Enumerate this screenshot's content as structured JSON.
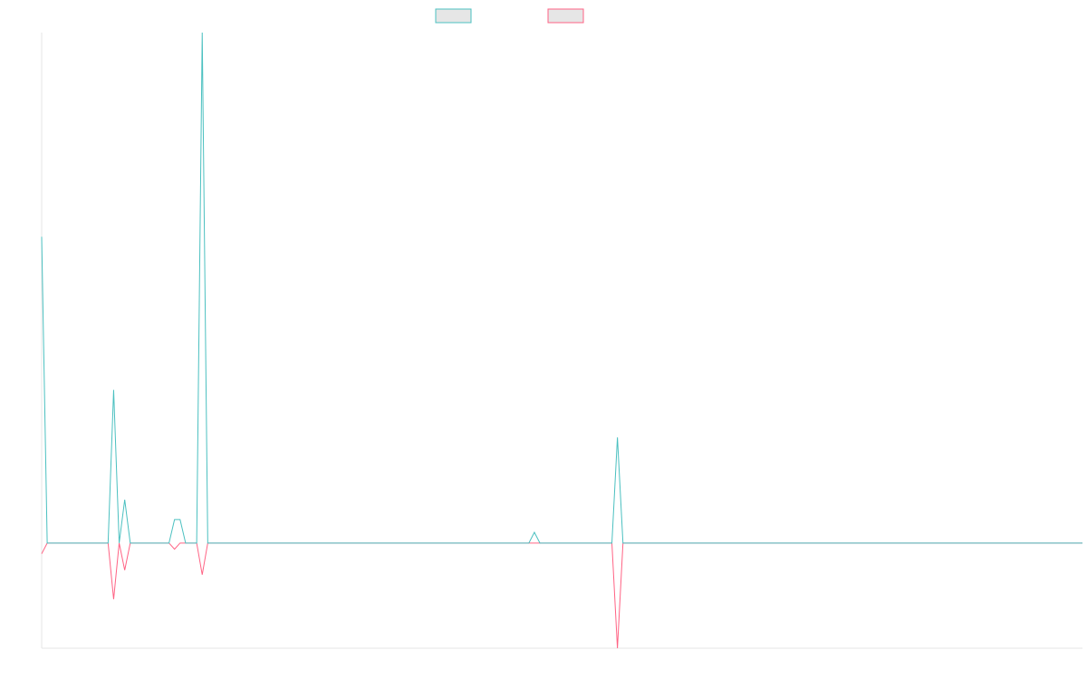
{
  "chart_data": {
    "type": "line",
    "ylim": [
      -2.06,
      10
    ],
    "series": [
      {
        "color": "#4bc0c0",
        "values": [
          6,
          0,
          0,
          0,
          0,
          0,
          0,
          0,
          0,
          0,
          0,
          0,
          0,
          3,
          0,
          0.85,
          0,
          0,
          0,
          0,
          0,
          0,
          0,
          0,
          0.46,
          0.46,
          0,
          0,
          0,
          10,
          0,
          0,
          0,
          0,
          0,
          0,
          0,
          0,
          0,
          0,
          0,
          0,
          0,
          0,
          0,
          0,
          0,
          0,
          0,
          0,
          0,
          0,
          0,
          0,
          0,
          0,
          0,
          0,
          0,
          0,
          0,
          0,
          0,
          0,
          0,
          0,
          0,
          0,
          0,
          0,
          0,
          0,
          0,
          0,
          0,
          0,
          0,
          0,
          0,
          0,
          0,
          0,
          0,
          0,
          0,
          0,
          0,
          0,
          0,
          0.21,
          0,
          0,
          0,
          0,
          0,
          0,
          0,
          0,
          0,
          0,
          0,
          0,
          0,
          0,
          2.07,
          0,
          0,
          0,
          0,
          0,
          0,
          0,
          0,
          0,
          0,
          0,
          0,
          0,
          0,
          0,
          0,
          0,
          0,
          0,
          0,
          0,
          0,
          0,
          0,
          0,
          0,
          0,
          0,
          0,
          0,
          0,
          0,
          0,
          0,
          0,
          0,
          0,
          0,
          0,
          0,
          0,
          0,
          0,
          0,
          0,
          0,
          0,
          0,
          0,
          0,
          0,
          0,
          0,
          0,
          0,
          0,
          0,
          0,
          0,
          0,
          0,
          0,
          0,
          0,
          0,
          0,
          0,
          0,
          0,
          0,
          0,
          0,
          0,
          0,
          0,
          0,
          0,
          0,
          0,
          0,
          0,
          0,
          0,
          0
        ]
      },
      {
        "color": "#ff6384",
        "values": [
          -0.21,
          0,
          0,
          0,
          0,
          0,
          0,
          0,
          0,
          0,
          0,
          0,
          0,
          -1.1,
          0,
          -0.53,
          0,
          0,
          0,
          0,
          0,
          0,
          0,
          0,
          -0.12,
          0,
          0,
          0,
          0,
          -0.62,
          0,
          0,
          0,
          0,
          0,
          0,
          0,
          0,
          0,
          0,
          0,
          0,
          0,
          0,
          0,
          0,
          0,
          0,
          0,
          0,
          0,
          0,
          0,
          0,
          0,
          0,
          0,
          0,
          0,
          0,
          0,
          0,
          0,
          0,
          0,
          0,
          0,
          0,
          0,
          0,
          0,
          0,
          0,
          0,
          0,
          0,
          0,
          0,
          0,
          0,
          0,
          0,
          0,
          0,
          0,
          0,
          0,
          0,
          0,
          0,
          0,
          0,
          0,
          0,
          0,
          0,
          0,
          0,
          0,
          0,
          0,
          0,
          0,
          0,
          -2.06,
          0,
          0,
          0,
          0,
          0,
          0,
          0,
          0,
          0,
          0,
          0,
          0,
          0,
          0,
          0,
          0,
          0,
          0,
          0,
          0,
          0,
          0,
          0,
          0,
          0,
          0,
          0,
          0,
          0,
          0,
          0,
          0,
          0,
          0,
          0,
          0,
          0,
          0,
          0,
          0,
          0,
          0,
          0,
          0,
          0,
          0,
          0,
          0,
          0,
          0,
          0,
          0,
          0,
          0,
          0,
          0,
          0,
          0,
          0,
          0,
          0,
          0,
          0,
          0,
          0,
          0,
          0,
          0,
          0,
          0,
          0,
          0,
          0,
          0,
          0,
          0,
          0,
          0,
          0,
          0,
          0,
          0,
          0,
          0
        ]
      }
    ]
  }
}
